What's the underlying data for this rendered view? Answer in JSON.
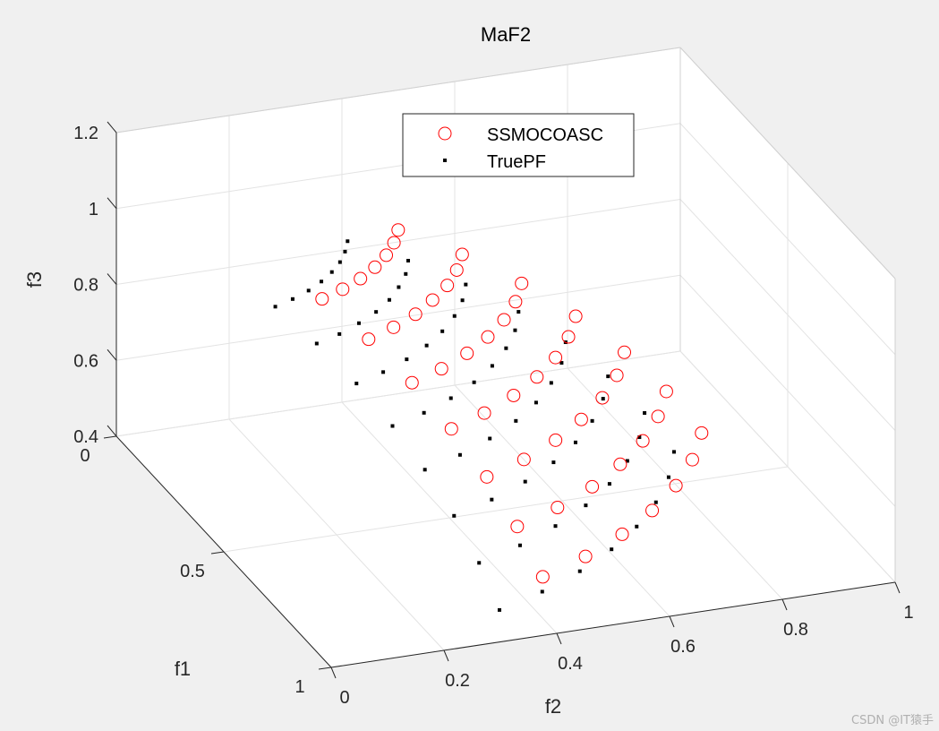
{
  "chart_data": {
    "type": "scatter3d",
    "title": "MaF2",
    "xlabel": "f1",
    "ylabel": "f2",
    "zlabel": "f3",
    "xlim": [
      0,
      1
    ],
    "ylim": [
      0,
      1
    ],
    "zlim": [
      0.4,
      1.2
    ],
    "xticks": [
      "0",
      "0.5",
      "1"
    ],
    "yticks": [
      "0",
      "0.2",
      "0.4",
      "0.6",
      "0.8",
      "1"
    ],
    "zticks": [
      "0.4",
      "0.6",
      "0.8",
      "1",
      "1.2"
    ],
    "grid": true,
    "legend_position": "top-center",
    "series": [
      {
        "name": "SSMOCOASC",
        "marker": "circle-open",
        "color": "#ff0000",
        "f1": [
          0.877,
          0.824,
          0.761,
          0.688,
          0.607,
          0.518,
          0.422,
          0.824,
          0.775,
          0.716,
          0.647,
          0.571,
          0.487,
          0.397,
          0.761,
          0.716,
          0.661,
          0.597,
          0.527,
          0.45,
          0.367,
          0.688,
          0.647,
          0.597,
          0.54,
          0.477,
          0.406,
          0.332,
          0.607,
          0.571,
          0.527,
          0.477,
          0.421,
          0.359,
          0.293,
          0.518,
          0.487,
          0.45,
          0.406,
          0.359,
          0.306,
          0.25,
          0.422,
          0.397,
          0.367,
          0.332,
          0.293,
          0.25,
          0.204
        ],
        "f2": [
          0.422,
          0.518,
          0.607,
          0.688,
          0.761,
          0.824,
          0.877,
          0.397,
          0.487,
          0.571,
          0.647,
          0.716,
          0.775,
          0.824,
          0.367,
          0.45,
          0.527,
          0.597,
          0.661,
          0.716,
          0.761,
          0.332,
          0.406,
          0.477,
          0.54,
          0.597,
          0.647,
          0.688,
          0.293,
          0.359,
          0.421,
          0.477,
          0.527,
          0.571,
          0.607,
          0.25,
          0.306,
          0.359,
          0.406,
          0.45,
          0.487,
          0.518,
          0.204,
          0.25,
          0.293,
          0.332,
          0.367,
          0.397,
          0.422
        ],
        "f3": [
          0.469,
          0.469,
          0.469,
          0.469,
          0.469,
          0.469,
          0.469,
          0.575,
          0.575,
          0.575,
          0.575,
          0.575,
          0.575,
          0.575,
          0.674,
          0.674,
          0.674,
          0.674,
          0.674,
          0.674,
          0.674,
          0.764,
          0.764,
          0.764,
          0.764,
          0.764,
          0.764,
          0.764,
          0.845,
          0.845,
          0.845,
          0.845,
          0.845,
          0.845,
          0.845,
          0.915,
          0.915,
          0.915,
          0.915,
          0.915,
          0.915,
          0.915,
          0.973,
          0.973,
          0.973,
          0.973,
          0.973,
          0.973,
          0.973
        ]
      },
      {
        "name": "TruePF",
        "marker": "dot",
        "color": "#000000",
        "f1": [
          0.854,
          0.809,
          0.753,
          0.688,
          0.616,
          0.535,
          0.447,
          0.354,
          0.809,
          0.766,
          0.713,
          0.652,
          0.584,
          0.507,
          0.424,
          0.335,
          0.753,
          0.713,
          0.664,
          0.607,
          0.544,
          0.472,
          0.394,
          0.312,
          0.688,
          0.652,
          0.607,
          0.555,
          0.497,
          0.431,
          0.361,
          0.285,
          0.616,
          0.584,
          0.544,
          0.497,
          0.445,
          0.386,
          0.323,
          0.255,
          0.535,
          0.507,
          0.472,
          0.431,
          0.386,
          0.335,
          0.28,
          0.222,
          0.447,
          0.424,
          0.394,
          0.361,
          0.323,
          0.28,
          0.234,
          0.185,
          0.354,
          0.335,
          0.312,
          0.285,
          0.255,
          0.222,
          0.185,
          0.147
        ],
        "f2": [
          0.354,
          0.447,
          0.535,
          0.616,
          0.688,
          0.753,
          0.809,
          0.854,
          0.335,
          0.424,
          0.507,
          0.584,
          0.652,
          0.713,
          0.766,
          0.809,
          0.312,
          0.394,
          0.472,
          0.544,
          0.607,
          0.664,
          0.713,
          0.753,
          0.285,
          0.361,
          0.431,
          0.497,
          0.555,
          0.607,
          0.652,
          0.688,
          0.255,
          0.323,
          0.386,
          0.445,
          0.497,
          0.544,
          0.584,
          0.616,
          0.222,
          0.28,
          0.335,
          0.386,
          0.431,
          0.472,
          0.507,
          0.535,
          0.185,
          0.234,
          0.28,
          0.323,
          0.361,
          0.394,
          0.424,
          0.447,
          0.147,
          0.185,
          0.222,
          0.255,
          0.285,
          0.312,
          0.335,
          0.354
        ],
        "f3": [
          0.383,
          0.383,
          0.383,
          0.383,
          0.383,
          0.383,
          0.383,
          0.383,
          0.484,
          0.484,
          0.484,
          0.484,
          0.484,
          0.484,
          0.484,
          0.484,
          0.579,
          0.579,
          0.579,
          0.579,
          0.579,
          0.579,
          0.579,
          0.579,
          0.667,
          0.667,
          0.667,
          0.667,
          0.667,
          0.667,
          0.667,
          0.667,
          0.745,
          0.745,
          0.745,
          0.745,
          0.745,
          0.745,
          0.745,
          0.745,
          0.815,
          0.815,
          0.815,
          0.815,
          0.815,
          0.815,
          0.815,
          0.815,
          0.875,
          0.875,
          0.875,
          0.875,
          0.875,
          0.875,
          0.875,
          0.875,
          0.924,
          0.924,
          0.924,
          0.924,
          0.924,
          0.924,
          0.924,
          0.924
        ]
      }
    ]
  },
  "watermark": "CSDN @IT猿手"
}
